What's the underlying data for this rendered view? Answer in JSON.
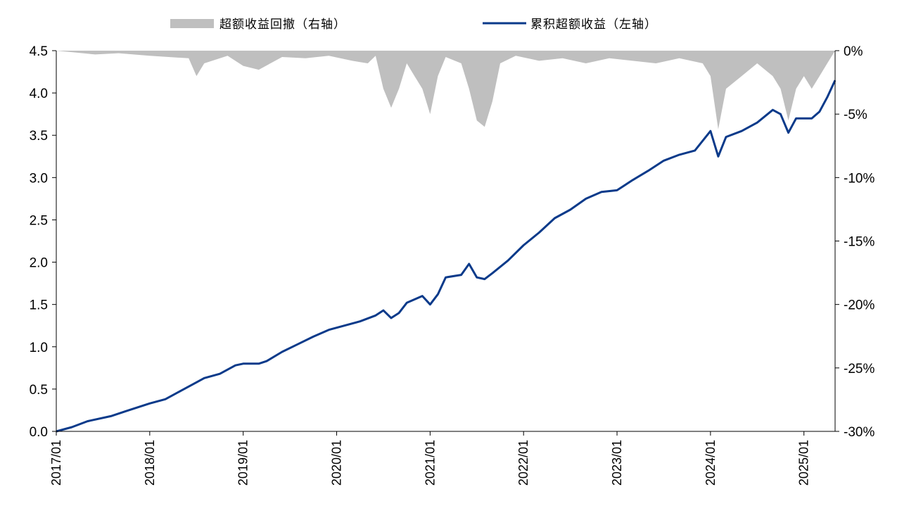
{
  "chart_data": {
    "type": "line",
    "legend": {
      "placement": "top",
      "items": [
        {
          "label": "超额收益回撤（右轴）",
          "color": "#bfbfbf",
          "kind": "area"
        },
        {
          "label": "累积超额收益（左轴）",
          "color": "#0a3a8a",
          "kind": "line"
        }
      ]
    },
    "x_ticks": [
      "2017/01",
      "2018/01",
      "2019/01",
      "2020/01",
      "2021/01",
      "2022/01",
      "2023/01",
      "2024/01",
      "2025/01"
    ],
    "x_range": [
      "2017/01",
      "2025/05"
    ],
    "y_left": {
      "min": 0,
      "max": 4.5,
      "ticks": [
        "0.0",
        "0.5",
        "1.0",
        "1.5",
        "2.0",
        "2.5",
        "3.0",
        "3.5",
        "4.0",
        "4.5"
      ]
    },
    "y_right": {
      "min": -0.3,
      "max": 0.0,
      "ticks": [
        "-30%",
        "-25%",
        "-20%",
        "-15%",
        "-10%",
        "-5%",
        "0%"
      ]
    },
    "grid": false,
    "series": [
      {
        "name": "累积超额收益（左轴）",
        "axis": "left",
        "color": "#0a3a8a",
        "points": [
          [
            "2017/01",
            0.0
          ],
          [
            "2017/03",
            0.05
          ],
          [
            "2017/05",
            0.12
          ],
          [
            "2017/08",
            0.18
          ],
          [
            "2017/10",
            0.24
          ],
          [
            "2018/01",
            0.33
          ],
          [
            "2018/03",
            0.38
          ],
          [
            "2018/05",
            0.48
          ],
          [
            "2018/07",
            0.58
          ],
          [
            "2018/08",
            0.63
          ],
          [
            "2018/10",
            0.68
          ],
          [
            "2018/12",
            0.78
          ],
          [
            "2019/01",
            0.8
          ],
          [
            "2019/03",
            0.8
          ],
          [
            "2019/04",
            0.83
          ],
          [
            "2019/06",
            0.94
          ],
          [
            "2019/08",
            1.03
          ],
          [
            "2019/10",
            1.12
          ],
          [
            "2019/12",
            1.2
          ],
          [
            "2020/02",
            1.25
          ],
          [
            "2020/04",
            1.3
          ],
          [
            "2020/06",
            1.37
          ],
          [
            "2020/07",
            1.43
          ],
          [
            "2020/08",
            1.34
          ],
          [
            "2020/09",
            1.4
          ],
          [
            "2020/10",
            1.52
          ],
          [
            "2020/12",
            1.6
          ],
          [
            "2021/01",
            1.5
          ],
          [
            "2021/02",
            1.62
          ],
          [
            "2021/03",
            1.82
          ],
          [
            "2021/05",
            1.85
          ],
          [
            "2021/06",
            1.98
          ],
          [
            "2021/07",
            1.82
          ],
          [
            "2021/08",
            1.8
          ],
          [
            "2021/09",
            1.87
          ],
          [
            "2021/11",
            2.02
          ],
          [
            "2022/01",
            2.2
          ],
          [
            "2022/03",
            2.35
          ],
          [
            "2022/05",
            2.52
          ],
          [
            "2022/07",
            2.62
          ],
          [
            "2022/09",
            2.75
          ],
          [
            "2022/11",
            2.83
          ],
          [
            "2023/01",
            2.85
          ],
          [
            "2023/03",
            2.97
          ],
          [
            "2023/05",
            3.08
          ],
          [
            "2023/07",
            3.2
          ],
          [
            "2023/09",
            3.27
          ],
          [
            "2023/11",
            3.32
          ],
          [
            "2024/01",
            3.55
          ],
          [
            "2024/02",
            3.25
          ],
          [
            "2024/03",
            3.48
          ],
          [
            "2024/05",
            3.55
          ],
          [
            "2024/07",
            3.65
          ],
          [
            "2024/09",
            3.8
          ],
          [
            "2024/10",
            3.75
          ],
          [
            "2024/11",
            3.53
          ],
          [
            "2024/12",
            3.7
          ],
          [
            "2025/02",
            3.7
          ],
          [
            "2025/03",
            3.78
          ],
          [
            "2025/04",
            3.95
          ],
          [
            "2025/05",
            4.15
          ]
        ]
      },
      {
        "name": "超额收益回撤（右轴）",
        "axis": "right",
        "color": "#bfbfbf",
        "points": [
          [
            "2017/01",
            0.0
          ],
          [
            "2017/06",
            -0.003
          ],
          [
            "2017/09",
            -0.002
          ],
          [
            "2018/01",
            -0.004
          ],
          [
            "2018/06",
            -0.006
          ],
          [
            "2018/07",
            -0.02
          ],
          [
            "2018/08",
            -0.01
          ],
          [
            "2018/11",
            -0.004
          ],
          [
            "2019/01",
            -0.012
          ],
          [
            "2019/03",
            -0.015
          ],
          [
            "2019/06",
            -0.005
          ],
          [
            "2019/09",
            -0.006
          ],
          [
            "2019/12",
            -0.004
          ],
          [
            "2020/03",
            -0.008
          ],
          [
            "2020/05",
            -0.01
          ],
          [
            "2020/06",
            -0.004
          ],
          [
            "2020/07",
            -0.03
          ],
          [
            "2020/08",
            -0.045
          ],
          [
            "2020/09",
            -0.03
          ],
          [
            "2020/10",
            -0.01
          ],
          [
            "2020/11",
            -0.02
          ],
          [
            "2020/12",
            -0.03
          ],
          [
            "2021/01",
            -0.05
          ],
          [
            "2021/02",
            -0.02
          ],
          [
            "2021/03",
            -0.005
          ],
          [
            "2021/05",
            -0.01
          ],
          [
            "2021/06",
            -0.03
          ],
          [
            "2021/07",
            -0.055
          ],
          [
            "2021/08",
            -0.06
          ],
          [
            "2021/09",
            -0.04
          ],
          [
            "2021/10",
            -0.01
          ],
          [
            "2021/12",
            -0.004
          ],
          [
            "2022/03",
            -0.008
          ],
          [
            "2022/06",
            -0.006
          ],
          [
            "2022/09",
            -0.01
          ],
          [
            "2022/12",
            -0.006
          ],
          [
            "2023/03",
            -0.008
          ],
          [
            "2023/06",
            -0.01
          ],
          [
            "2023/09",
            -0.006
          ],
          [
            "2023/12",
            -0.01
          ],
          [
            "2024/01",
            -0.02
          ],
          [
            "2024/02",
            -0.062
          ],
          [
            "2024/03",
            -0.03
          ],
          [
            "2024/05",
            -0.02
          ],
          [
            "2024/07",
            -0.01
          ],
          [
            "2024/09",
            -0.02
          ],
          [
            "2024/10",
            -0.03
          ],
          [
            "2024/11",
            -0.055
          ],
          [
            "2024/12",
            -0.03
          ],
          [
            "2025/01",
            -0.02
          ],
          [
            "2025/02",
            -0.03
          ],
          [
            "2025/03",
            -0.02
          ],
          [
            "2025/04",
            -0.01
          ],
          [
            "2025/05",
            0.0
          ]
        ]
      }
    ]
  }
}
